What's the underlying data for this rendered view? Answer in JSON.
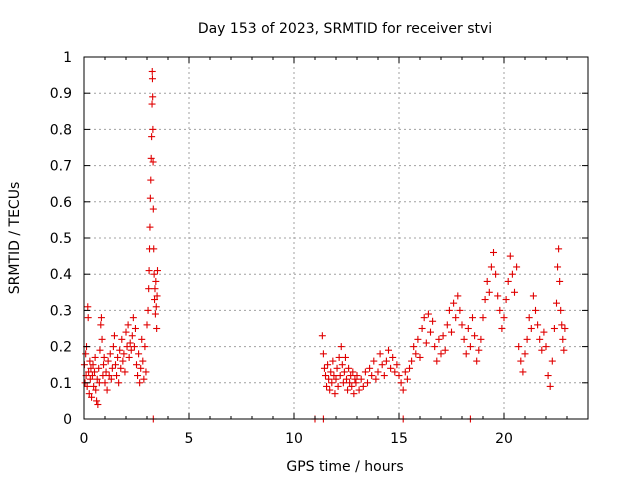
{
  "chart_data": {
    "type": "scatter",
    "title": "Day 153 of 2023, SRMTID for receiver stvi",
    "xlabel": "GPS time / hours",
    "ylabel": "SRMTID / TECUs",
    "xlim": [
      0,
      24
    ],
    "ylim": [
      0,
      1
    ],
    "xticks": [
      0,
      5,
      10,
      15,
      20
    ],
    "yticks": [
      0,
      0.1,
      0.2,
      0.3,
      0.4,
      0.5,
      0.6,
      0.7,
      0.8,
      0.9,
      1
    ],
    "xtick_labels": [
      "0",
      "5",
      "10",
      "15",
      "20"
    ],
    "ytick_labels": [
      "0",
      "0.1",
      "0.2",
      "0.3",
      "0.4",
      "0.5",
      "0.6",
      "0.7",
      "0.8",
      "0.9",
      "1"
    ],
    "grid": true,
    "marker": "+",
    "color": "#e00000",
    "series": [
      {
        "name": "SRMTID",
        "points": [
          [
            0.02,
            0.15
          ],
          [
            0.05,
            0.1
          ],
          [
            0.08,
            0.18
          ],
          [
            0.1,
            0.12
          ],
          [
            0.12,
            0.2
          ],
          [
            0.15,
            0.09
          ],
          [
            0.18,
            0.31
          ],
          [
            0.2,
            0.28
          ],
          [
            0.22,
            0.13
          ],
          [
            0.25,
            0.07
          ],
          [
            0.28,
            0.16
          ],
          [
            0.3,
            0.11
          ],
          [
            0.33,
            0.14
          ],
          [
            0.36,
            0.06
          ],
          [
            0.4,
            0.12
          ],
          [
            0.43,
            0.15
          ],
          [
            0.46,
            0.09
          ],
          [
            0.5,
            0.13
          ],
          [
            0.53,
            0.17
          ],
          [
            0.56,
            0.08
          ],
          [
            0.6,
            0.05
          ],
          [
            0.63,
            0.11
          ],
          [
            0.66,
            0.04
          ],
          [
            0.7,
            0.14
          ],
          [
            0.73,
            0.1
          ],
          [
            0.76,
            0.19
          ],
          [
            0.8,
            0.26
          ],
          [
            0.83,
            0.28
          ],
          [
            0.86,
            0.22
          ],
          [
            0.9,
            0.12
          ],
          [
            0.93,
            0.15
          ],
          [
            0.96,
            0.17
          ],
          [
            1.0,
            0.1
          ],
          [
            1.05,
            0.13
          ],
          [
            1.1,
            0.08
          ],
          [
            1.15,
            0.16
          ],
          [
            1.2,
            0.12
          ],
          [
            1.25,
            0.18
          ],
          [
            1.3,
            0.11
          ],
          [
            1.35,
            0.14
          ],
          [
            1.4,
            0.2
          ],
          [
            1.45,
            0.23
          ],
          [
            1.5,
            0.15
          ],
          [
            1.55,
            0.12
          ],
          [
            1.6,
            0.17
          ],
          [
            1.65,
            0.1
          ],
          [
            1.7,
            0.19
          ],
          [
            1.75,
            0.14
          ],
          [
            1.8,
            0.22
          ],
          [
            1.85,
            0.16
          ],
          [
            1.9,
            0.18
          ],
          [
            1.95,
            0.13
          ],
          [
            2.0,
            0.24
          ],
          [
            2.05,
            0.2
          ],
          [
            2.1,
            0.26
          ],
          [
            2.15,
            0.17
          ],
          [
            2.2,
            0.21
          ],
          [
            2.25,
            0.19
          ],
          [
            2.3,
            0.23
          ],
          [
            2.35,
            0.28
          ],
          [
            2.4,
            0.2
          ],
          [
            2.45,
            0.25
          ],
          [
            2.5,
            0.15
          ],
          [
            2.55,
            0.12
          ],
          [
            2.6,
            0.18
          ],
          [
            2.65,
            0.1
          ],
          [
            2.7,
            0.14
          ],
          [
            2.75,
            0.22
          ],
          [
            2.8,
            0.16
          ],
          [
            2.85,
            0.11
          ],
          [
            2.9,
            0.2
          ],
          [
            2.95,
            0.13
          ],
          [
            3.0,
            0.26
          ],
          [
            3.05,
            0.3
          ],
          [
            3.08,
            0.36
          ],
          [
            3.1,
            0.41
          ],
          [
            3.12,
            0.47
          ],
          [
            3.14,
            0.53
          ],
          [
            3.16,
            0.61
          ],
          [
            3.18,
            0.66
          ],
          [
            3.2,
            0.72
          ],
          [
            3.22,
            0.78
          ],
          [
            3.24,
            0.87
          ],
          [
            3.25,
            0.96
          ],
          [
            3.26,
            0.94
          ],
          [
            3.27,
            0.89
          ],
          [
            3.28,
            0.8
          ],
          [
            3.29,
            0.71
          ],
          [
            3.3,
            0.58
          ],
          [
            3.32,
            0.47
          ],
          [
            3.34,
            0.4
          ],
          [
            3.36,
            0.33
          ],
          [
            3.38,
            0.36
          ],
          [
            3.4,
            0.29
          ],
          [
            3.42,
            0.38
          ],
          [
            3.44,
            0.31
          ],
          [
            3.46,
            0.25
          ],
          [
            3.48,
            0.34
          ],
          [
            3.5,
            0.41
          ],
          [
            3.3,
            0.0
          ],
          [
            11.0,
            0.0
          ],
          [
            11.4,
            0.0
          ],
          [
            15.2,
            0.0
          ],
          [
            18.4,
            0.0
          ],
          [
            11.35,
            0.23
          ],
          [
            11.4,
            0.18
          ],
          [
            11.45,
            0.14
          ],
          [
            11.5,
            0.12
          ],
          [
            11.55,
            0.09
          ],
          [
            11.6,
            0.15
          ],
          [
            11.65,
            0.11
          ],
          [
            11.7,
            0.08
          ],
          [
            11.75,
            0.13
          ],
          [
            11.8,
            0.1
          ],
          [
            11.85,
            0.16
          ],
          [
            11.9,
            0.12
          ],
          [
            11.95,
            0.07
          ],
          [
            12.0,
            0.11
          ],
          [
            12.05,
            0.14
          ],
          [
            12.1,
            0.09
          ],
          [
            12.15,
            0.17
          ],
          [
            12.2,
            0.12
          ],
          [
            12.25,
            0.2
          ],
          [
            12.3,
            0.15
          ],
          [
            12.35,
            0.1
          ],
          [
            12.4,
            0.13
          ],
          [
            12.45,
            0.17
          ],
          [
            12.5,
            0.11
          ],
          [
            12.55,
            0.08
          ],
          [
            12.6,
            0.14
          ],
          [
            12.65,
            0.1
          ],
          [
            12.7,
            0.12
          ],
          [
            12.75,
            0.09
          ],
          [
            12.8,
            0.13
          ],
          [
            12.85,
            0.07
          ],
          [
            12.9,
            0.11
          ],
          [
            12.95,
            0.1
          ],
          [
            13.0,
            0.12
          ],
          [
            13.1,
            0.08
          ],
          [
            13.2,
            0.11
          ],
          [
            13.3,
            0.09
          ],
          [
            13.4,
            0.13
          ],
          [
            13.5,
            0.1
          ],
          [
            13.6,
            0.14
          ],
          [
            13.7,
            0.12
          ],
          [
            13.8,
            0.16
          ],
          [
            13.9,
            0.11
          ],
          [
            14.0,
            0.13
          ],
          [
            14.1,
            0.18
          ],
          [
            14.2,
            0.15
          ],
          [
            14.3,
            0.12
          ],
          [
            14.4,
            0.16
          ],
          [
            14.5,
            0.19
          ],
          [
            14.6,
            0.14
          ],
          [
            14.7,
            0.17
          ],
          [
            14.8,
            0.13
          ],
          [
            14.9,
            0.15
          ],
          [
            15.0,
            0.12
          ],
          [
            15.1,
            0.1
          ],
          [
            15.2,
            0.08
          ],
          [
            15.3,
            0.13
          ],
          [
            15.4,
            0.11
          ],
          [
            15.5,
            0.14
          ],
          [
            15.6,
            0.16
          ],
          [
            15.7,
            0.2
          ],
          [
            15.8,
            0.18
          ],
          [
            15.9,
            0.22
          ],
          [
            16.0,
            0.17
          ],
          [
            16.1,
            0.25
          ],
          [
            16.2,
            0.28
          ],
          [
            16.3,
            0.21
          ],
          [
            16.4,
            0.29
          ],
          [
            16.5,
            0.24
          ],
          [
            16.6,
            0.27
          ],
          [
            16.7,
            0.2
          ],
          [
            16.8,
            0.16
          ],
          [
            16.9,
            0.22
          ],
          [
            17.0,
            0.18
          ],
          [
            17.1,
            0.23
          ],
          [
            17.2,
            0.19
          ],
          [
            17.3,
            0.26
          ],
          [
            17.4,
            0.3
          ],
          [
            17.5,
            0.24
          ],
          [
            17.6,
            0.32
          ],
          [
            17.7,
            0.28
          ],
          [
            17.8,
            0.34
          ],
          [
            17.9,
            0.3
          ],
          [
            18.0,
            0.26
          ],
          [
            18.1,
            0.22
          ],
          [
            18.2,
            0.18
          ],
          [
            18.3,
            0.25
          ],
          [
            18.4,
            0.2
          ],
          [
            18.5,
            0.28
          ],
          [
            18.6,
            0.23
          ],
          [
            18.7,
            0.16
          ],
          [
            18.8,
            0.19
          ],
          [
            18.9,
            0.22
          ],
          [
            19.0,
            0.28
          ],
          [
            19.1,
            0.33
          ],
          [
            19.2,
            0.38
          ],
          [
            19.3,
            0.35
          ],
          [
            19.4,
            0.42
          ],
          [
            19.5,
            0.46
          ],
          [
            19.6,
            0.4
          ],
          [
            19.7,
            0.34
          ],
          [
            19.8,
            0.3
          ],
          [
            19.9,
            0.25
          ],
          [
            20.0,
            0.28
          ],
          [
            20.1,
            0.33
          ],
          [
            20.2,
            0.38
          ],
          [
            20.3,
            0.45
          ],
          [
            20.4,
            0.4
          ],
          [
            20.5,
            0.35
          ],
          [
            20.6,
            0.42
          ],
          [
            20.7,
            0.2
          ],
          [
            20.8,
            0.16
          ],
          [
            20.9,
            0.13
          ],
          [
            21.0,
            0.18
          ],
          [
            21.1,
            0.22
          ],
          [
            21.2,
            0.28
          ],
          [
            21.3,
            0.25
          ],
          [
            21.4,
            0.34
          ],
          [
            21.5,
            0.3
          ],
          [
            21.6,
            0.26
          ],
          [
            21.7,
            0.22
          ],
          [
            21.8,
            0.19
          ],
          [
            21.9,
            0.24
          ],
          [
            22.0,
            0.2
          ],
          [
            22.1,
            0.12
          ],
          [
            22.2,
            0.09
          ],
          [
            22.3,
            0.16
          ],
          [
            22.4,
            0.25
          ],
          [
            22.5,
            0.32
          ],
          [
            22.55,
            0.42
          ],
          [
            22.6,
            0.47
          ],
          [
            22.65,
            0.38
          ],
          [
            22.7,
            0.3
          ],
          [
            22.75,
            0.26
          ],
          [
            22.8,
            0.22
          ],
          [
            22.85,
            0.19
          ],
          [
            22.9,
            0.25
          ]
        ]
      }
    ]
  }
}
